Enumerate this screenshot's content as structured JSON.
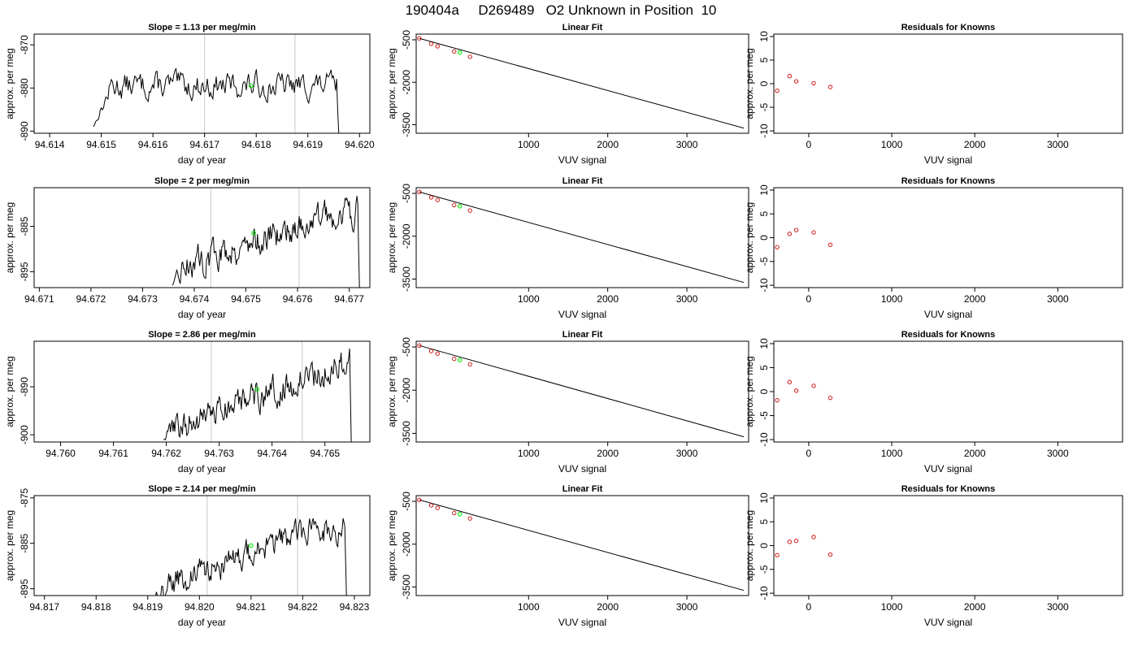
{
  "figure_title": "190404a     D269489   O2 Unknown in Position  10",
  "colors": {
    "trace": "#000000",
    "marker_lines": "#c8c8c8",
    "unknown": "#00ee00",
    "known": "#cc0000",
    "fit_line": "#000000",
    "frame": "#000000"
  },
  "chart_data": [
    {
      "id": "r1-trace",
      "type": "line",
      "title": "Slope =  1.13  per meg/min",
      "xlabel": "day of year",
      "ylabel": "approx. per meg",
      "xlim": [
        94.6137,
        94.6202
      ],
      "ylim": [
        -890.5,
        -867.5
      ],
      "xticks": [
        "94.614",
        "94.615",
        "94.616",
        "94.617",
        "94.618",
        "94.619",
        "94.620"
      ],
      "xtick_values": [
        94.614,
        94.615,
        94.616,
        94.617,
        94.618,
        94.619,
        94.62
      ],
      "yticks": [
        "-870",
        "-880",
        "-890"
      ],
      "ytick_values": [
        -870,
        -880,
        -890
      ],
      "trace": {
        "start": 94.61485,
        "end": 94.6196,
        "first": -889,
        "plateau": -879.5,
        "noise": 2.2,
        "rise_end": 94.6152,
        "last": -891
      },
      "vlines": [
        94.617,
        94.61875
      ],
      "unknown_point": {
        "x": 94.6179,
        "y": -879.5
      }
    },
    {
      "id": "r1-fit",
      "type": "scatter",
      "title": "Linear Fit",
      "xlabel": "VUV signal",
      "ylabel": "approx. per meg",
      "xlim": [
        -420,
        3780
      ],
      "ylim": [
        -3800,
        -300
      ],
      "xticks": [
        "1000",
        "2000",
        "3000"
      ],
      "xtick_values": [
        1000,
        2000,
        3000
      ],
      "yticks": [
        "-500",
        "-2000",
        "-3500"
      ],
      "ytick_values": [
        -500,
        -2000,
        -3500
      ],
      "line": {
        "x": [
          -380,
          3720
        ],
        "y": [
          -450,
          -3620
        ]
      },
      "known_points": {
        "x": [
          -380,
          -230,
          -150,
          60,
          260
        ],
        "y": [
          -450,
          -640,
          -730,
          -910,
          -1100
        ]
      },
      "unknown_point": {
        "x": 130,
        "y": -950
      }
    },
    {
      "id": "r1-resid",
      "type": "scatter",
      "title": "Residuals for Knowns",
      "xlabel": "VUV signal",
      "ylabel": "approx. per meg",
      "xlim": [
        -420,
        3780
      ],
      "ylim": [
        -10.5,
        10.5
      ],
      "xticks": [
        "0",
        "1000",
        "2000",
        "3000"
      ],
      "xtick_values": [
        0,
        1000,
        2000,
        3000
      ],
      "yticks": [
        "10",
        "5",
        "0",
        "-5",
        "-10"
      ],
      "ytick_values": [
        10,
        5,
        0,
        -5,
        -10
      ],
      "known_points": {
        "x": [
          -380,
          -230,
          -150,
          60,
          260
        ],
        "y": [
          -1.5,
          1.6,
          0.5,
          0.1,
          -0.7
        ]
      }
    },
    {
      "id": "r2-trace",
      "type": "line",
      "title": "Slope =  2  per meg/min",
      "xlabel": "day of year",
      "ylabel": "approx. per meg",
      "xlim": [
        94.6709,
        94.6774
      ],
      "ylim": [
        -898.5,
        -876.5
      ],
      "xticks": [
        "94.671",
        "94.672",
        "94.673",
        "94.674",
        "94.675",
        "94.676",
        "94.677"
      ],
      "xtick_values": [
        94.671,
        94.672,
        94.673,
        94.674,
        94.675,
        94.676,
        94.677
      ],
      "yticks": [
        "-885",
        "-895"
      ],
      "ytick_values": [
        -885,
        -895
      ],
      "trace": {
        "start": 94.67358,
        "end": 94.6772,
        "first": -898,
        "plateau": -887,
        "noise": 2.4,
        "rise_end": 94.6738,
        "last": -899,
        "ramp": [
          94.6737,
          -894,
          94.6768,
          -882
        ]
      },
      "vlines": [
        94.67432,
        94.67603
      ],
      "unknown_point": {
        "x": 94.67515,
        "y": -886.5
      }
    },
    {
      "id": "r2-fit",
      "type": "scatter",
      "title": "Linear Fit",
      "xlabel": "VUV signal",
      "ylabel": "approx. per meg",
      "xlim": [
        -420,
        3780
      ],
      "ylim": [
        -3800,
        -300
      ],
      "xticks": [
        "1000",
        "2000",
        "3000"
      ],
      "xtick_values": [
        1000,
        2000,
        3000
      ],
      "yticks": [
        "-500",
        "-2000",
        "-3500"
      ],
      "ytick_values": [
        -500,
        -2000,
        -3500
      ],
      "line": {
        "x": [
          -380,
          3720
        ],
        "y": [
          -450,
          -3620
        ]
      },
      "known_points": {
        "x": [
          -380,
          -230,
          -150,
          60,
          260
        ],
        "y": [
          -450,
          -640,
          -730,
          -910,
          -1100
        ]
      },
      "unknown_point": {
        "x": 130,
        "y": -950
      }
    },
    {
      "id": "r2-resid",
      "type": "scatter",
      "title": "Residuals for Knowns",
      "xlabel": "VUV signal",
      "ylabel": "approx. per meg",
      "xlim": [
        -420,
        3780
      ],
      "ylim": [
        -10.5,
        10.5
      ],
      "xticks": [
        "0",
        "1000",
        "2000",
        "3000"
      ],
      "xtick_values": [
        0,
        1000,
        2000,
        3000
      ],
      "yticks": [
        "10",
        "5",
        "0",
        "-5",
        "-10"
      ],
      "ytick_values": [
        10,
        5,
        0,
        -5,
        -10
      ],
      "known_points": {
        "x": [
          -380,
          -230,
          -150,
          60,
          260
        ],
        "y": [
          -2.0,
          0.8,
          1.6,
          1.1,
          -1.5
        ]
      }
    },
    {
      "id": "r3-trace",
      "type": "line",
      "title": "Slope =  2.86  per meg/min",
      "xlabel": "day of year",
      "ylabel": "approx. per meg",
      "xlim": [
        94.7595,
        94.76585
      ],
      "ylim": [
        -901.5,
        -880.5
      ],
      "xticks": [
        "94.760",
        "94.761",
        "94.762",
        "94.763",
        "94.764",
        "94.765"
      ],
      "xtick_values": [
        94.76,
        94.761,
        94.762,
        94.763,
        94.764,
        94.765
      ],
      "yticks": [
        "-890",
        "-900"
      ],
      "ytick_values": [
        -890,
        -900
      ],
      "trace": {
        "start": 94.76195,
        "end": 94.7655,
        "first": -901,
        "plateau": -890,
        "noise": 2.3,
        "rise_end": 94.7621,
        "last": -902,
        "ramp": [
          94.7621,
          -899,
          94.7654,
          -885
        ]
      },
      "vlines": [
        94.76285,
        94.76457
      ],
      "unknown_point": {
        "x": 94.76372,
        "y": -890.5
      }
    },
    {
      "id": "r3-fit",
      "type": "scatter",
      "title": "Linear Fit",
      "xlabel": "VUV signal",
      "ylabel": "approx. per meg",
      "xlim": [
        -420,
        3780
      ],
      "ylim": [
        -3800,
        -300
      ],
      "xticks": [
        "1000",
        "2000",
        "3000"
      ],
      "xtick_values": [
        1000,
        2000,
        3000
      ],
      "yticks": [
        "-500",
        "-2000",
        "-3500"
      ],
      "ytick_values": [
        -500,
        -2000,
        -3500
      ],
      "line": {
        "x": [
          -380,
          3720
        ],
        "y": [
          -450,
          -3620
        ]
      },
      "known_points": {
        "x": [
          -380,
          -230,
          -150,
          60,
          260
        ],
        "y": [
          -450,
          -640,
          -730,
          -910,
          -1100
        ]
      },
      "unknown_point": {
        "x": 130,
        "y": -950
      }
    },
    {
      "id": "r3-resid",
      "type": "scatter",
      "title": "Residuals for Knowns",
      "xlabel": "VUV signal",
      "ylabel": "approx. per meg",
      "xlim": [
        -420,
        3780
      ],
      "ylim": [
        -10.5,
        10.5
      ],
      "xticks": [
        "0",
        "1000",
        "2000",
        "3000"
      ],
      "xtick_values": [
        0,
        1000,
        2000,
        3000
      ],
      "yticks": [
        "10",
        "5",
        "0",
        "-5",
        "-10"
      ],
      "ytick_values": [
        10,
        5,
        0,
        -5,
        -10
      ],
      "known_points": {
        "x": [
          -380,
          -230,
          -150,
          60,
          260
        ],
        "y": [
          -1.8,
          2.0,
          0.2,
          1.2,
          -1.3
        ]
      }
    },
    {
      "id": "r4-trace",
      "type": "line",
      "title": "Slope =  2.14  per meg/min",
      "xlabel": "day of year",
      "ylabel": "approx. per meg",
      "xlim": [
        94.8168,
        94.8233
      ],
      "ylim": [
        -896.5,
        -874.5
      ],
      "xticks": [
        "94.817",
        "94.818",
        "94.819",
        "94.820",
        "94.821",
        "94.822",
        "94.823"
      ],
      "xtick_values": [
        94.817,
        94.818,
        94.819,
        94.82,
        94.821,
        94.822,
        94.823
      ],
      "yticks": [
        "-875",
        "-885",
        "-895"
      ],
      "ytick_values": [
        -875,
        -885,
        -895
      ],
      "trace": {
        "start": 94.8191,
        "end": 94.82285,
        "first": -897,
        "plateau": -886,
        "noise": 2.2,
        "rise_end": 94.8193,
        "last": -898,
        "ramp": [
          94.8192,
          -895,
          94.8222,
          -882
        ]
      },
      "vlines": [
        94.82015,
        94.8219
      ],
      "unknown_point": {
        "x": 94.821,
        "y": -885.5
      }
    },
    {
      "id": "r4-fit",
      "type": "scatter",
      "title": "Linear Fit",
      "xlabel": "VUV signal",
      "ylabel": "approx. per meg",
      "xlim": [
        -420,
        3780
      ],
      "ylim": [
        -3800,
        -300
      ],
      "xticks": [
        "1000",
        "2000",
        "3000"
      ],
      "xtick_values": [
        1000,
        2000,
        3000
      ],
      "yticks": [
        "-500",
        "-2000",
        "-3500"
      ],
      "ytick_values": [
        -500,
        -2000,
        -3500
      ],
      "line": {
        "x": [
          -380,
          3720
        ],
        "y": [
          -450,
          -3620
        ]
      },
      "known_points": {
        "x": [
          -380,
          -230,
          -150,
          60,
          260
        ],
        "y": [
          -450,
          -640,
          -730,
          -910,
          -1100
        ]
      },
      "unknown_point": {
        "x": 130,
        "y": -950
      }
    },
    {
      "id": "r4-resid",
      "type": "scatter",
      "title": "Residuals for Knowns",
      "xlabel": "VUV signal",
      "ylabel": "approx. per meg",
      "xlim": [
        -420,
        3780
      ],
      "ylim": [
        -10.5,
        10.5
      ],
      "xticks": [
        "0",
        "1000",
        "2000",
        "3000"
      ],
      "xtick_values": [
        0,
        1000,
        2000,
        3000
      ],
      "yticks": [
        "10",
        "5",
        "0",
        "-5",
        "-10"
      ],
      "ytick_values": [
        10,
        5,
        0,
        -5,
        -10
      ],
      "known_points": {
        "x": [
          -380,
          -230,
          -150,
          60,
          260
        ],
        "y": [
          -2.0,
          0.8,
          1.0,
          1.8,
          -1.9
        ]
      }
    }
  ]
}
